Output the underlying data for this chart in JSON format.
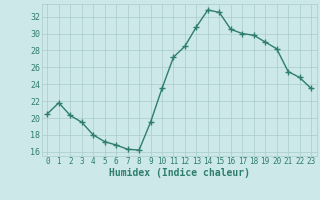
{
  "x": [
    0,
    1,
    2,
    3,
    4,
    5,
    6,
    7,
    8,
    9,
    10,
    11,
    12,
    13,
    14,
    15,
    16,
    17,
    18,
    19,
    20,
    21,
    22,
    23
  ],
  "y": [
    20.5,
    21.8,
    20.3,
    19.5,
    18.0,
    17.2,
    16.8,
    16.3,
    16.2,
    19.5,
    23.5,
    27.2,
    28.5,
    30.8,
    32.8,
    32.5,
    30.5,
    30.0,
    29.8,
    29.0,
    28.2,
    25.5,
    24.8,
    23.5
  ],
  "line_color": "#2e7d6e",
  "marker": "+",
  "marker_size": 4,
  "line_width": 1.0,
  "bg_color": "#cce8e8",
  "grid_color": "#aacccc",
  "tick_color": "#2e7d6e",
  "label_color": "#2e7d6e",
  "xlabel": "Humidex (Indice chaleur)",
  "xlim": [
    -0.5,
    23.5
  ],
  "ylim": [
    15.5,
    33.5
  ],
  "yticks": [
    16,
    18,
    20,
    22,
    24,
    26,
    28,
    30,
    32
  ],
  "xticks": [
    0,
    1,
    2,
    3,
    4,
    5,
    6,
    7,
    8,
    9,
    10,
    11,
    12,
    13,
    14,
    15,
    16,
    17,
    18,
    19,
    20,
    21,
    22,
    23
  ]
}
